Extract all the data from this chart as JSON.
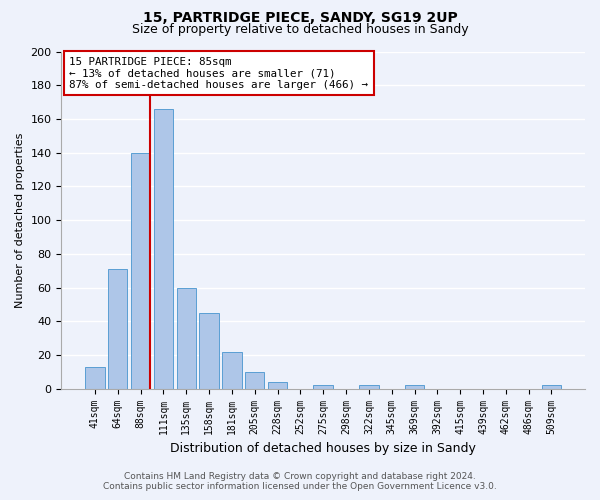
{
  "title1": "15, PARTRIDGE PIECE, SANDY, SG19 2UP",
  "title2": "Size of property relative to detached houses in Sandy",
  "xlabel": "Distribution of detached houses by size in Sandy",
  "ylabel": "Number of detached properties",
  "bar_labels": [
    "41sqm",
    "64sqm",
    "88sqm",
    "111sqm",
    "135sqm",
    "158sqm",
    "181sqm",
    "205sqm",
    "228sqm",
    "252sqm",
    "275sqm",
    "298sqm",
    "322sqm",
    "345sqm",
    "369sqm",
    "392sqm",
    "415sqm",
    "439sqm",
    "462sqm",
    "486sqm",
    "509sqm"
  ],
  "bar_values": [
    13,
    71,
    140,
    166,
    60,
    45,
    22,
    10,
    4,
    0,
    2,
    0,
    2,
    0,
    2,
    0,
    0,
    0,
    0,
    0,
    2
  ],
  "bar_color": "#aec6e8",
  "bar_edge_color": "#5a9fd4",
  "vline_x_index": 2,
  "vline_color": "#cc0000",
  "ylim": [
    0,
    200
  ],
  "yticks": [
    0,
    20,
    40,
    60,
    80,
    100,
    120,
    140,
    160,
    180,
    200
  ],
  "annotation_box_text": "15 PARTRIDGE PIECE: 85sqm\n← 13% of detached houses are smaller (71)\n87% of semi-detached houses are larger (466) →",
  "footer1": "Contains HM Land Registry data © Crown copyright and database right 2024.",
  "footer2": "Contains public sector information licensed under the Open Government Licence v3.0.",
  "bg_color": "#eef2fb",
  "grid_color": "#ffffff"
}
